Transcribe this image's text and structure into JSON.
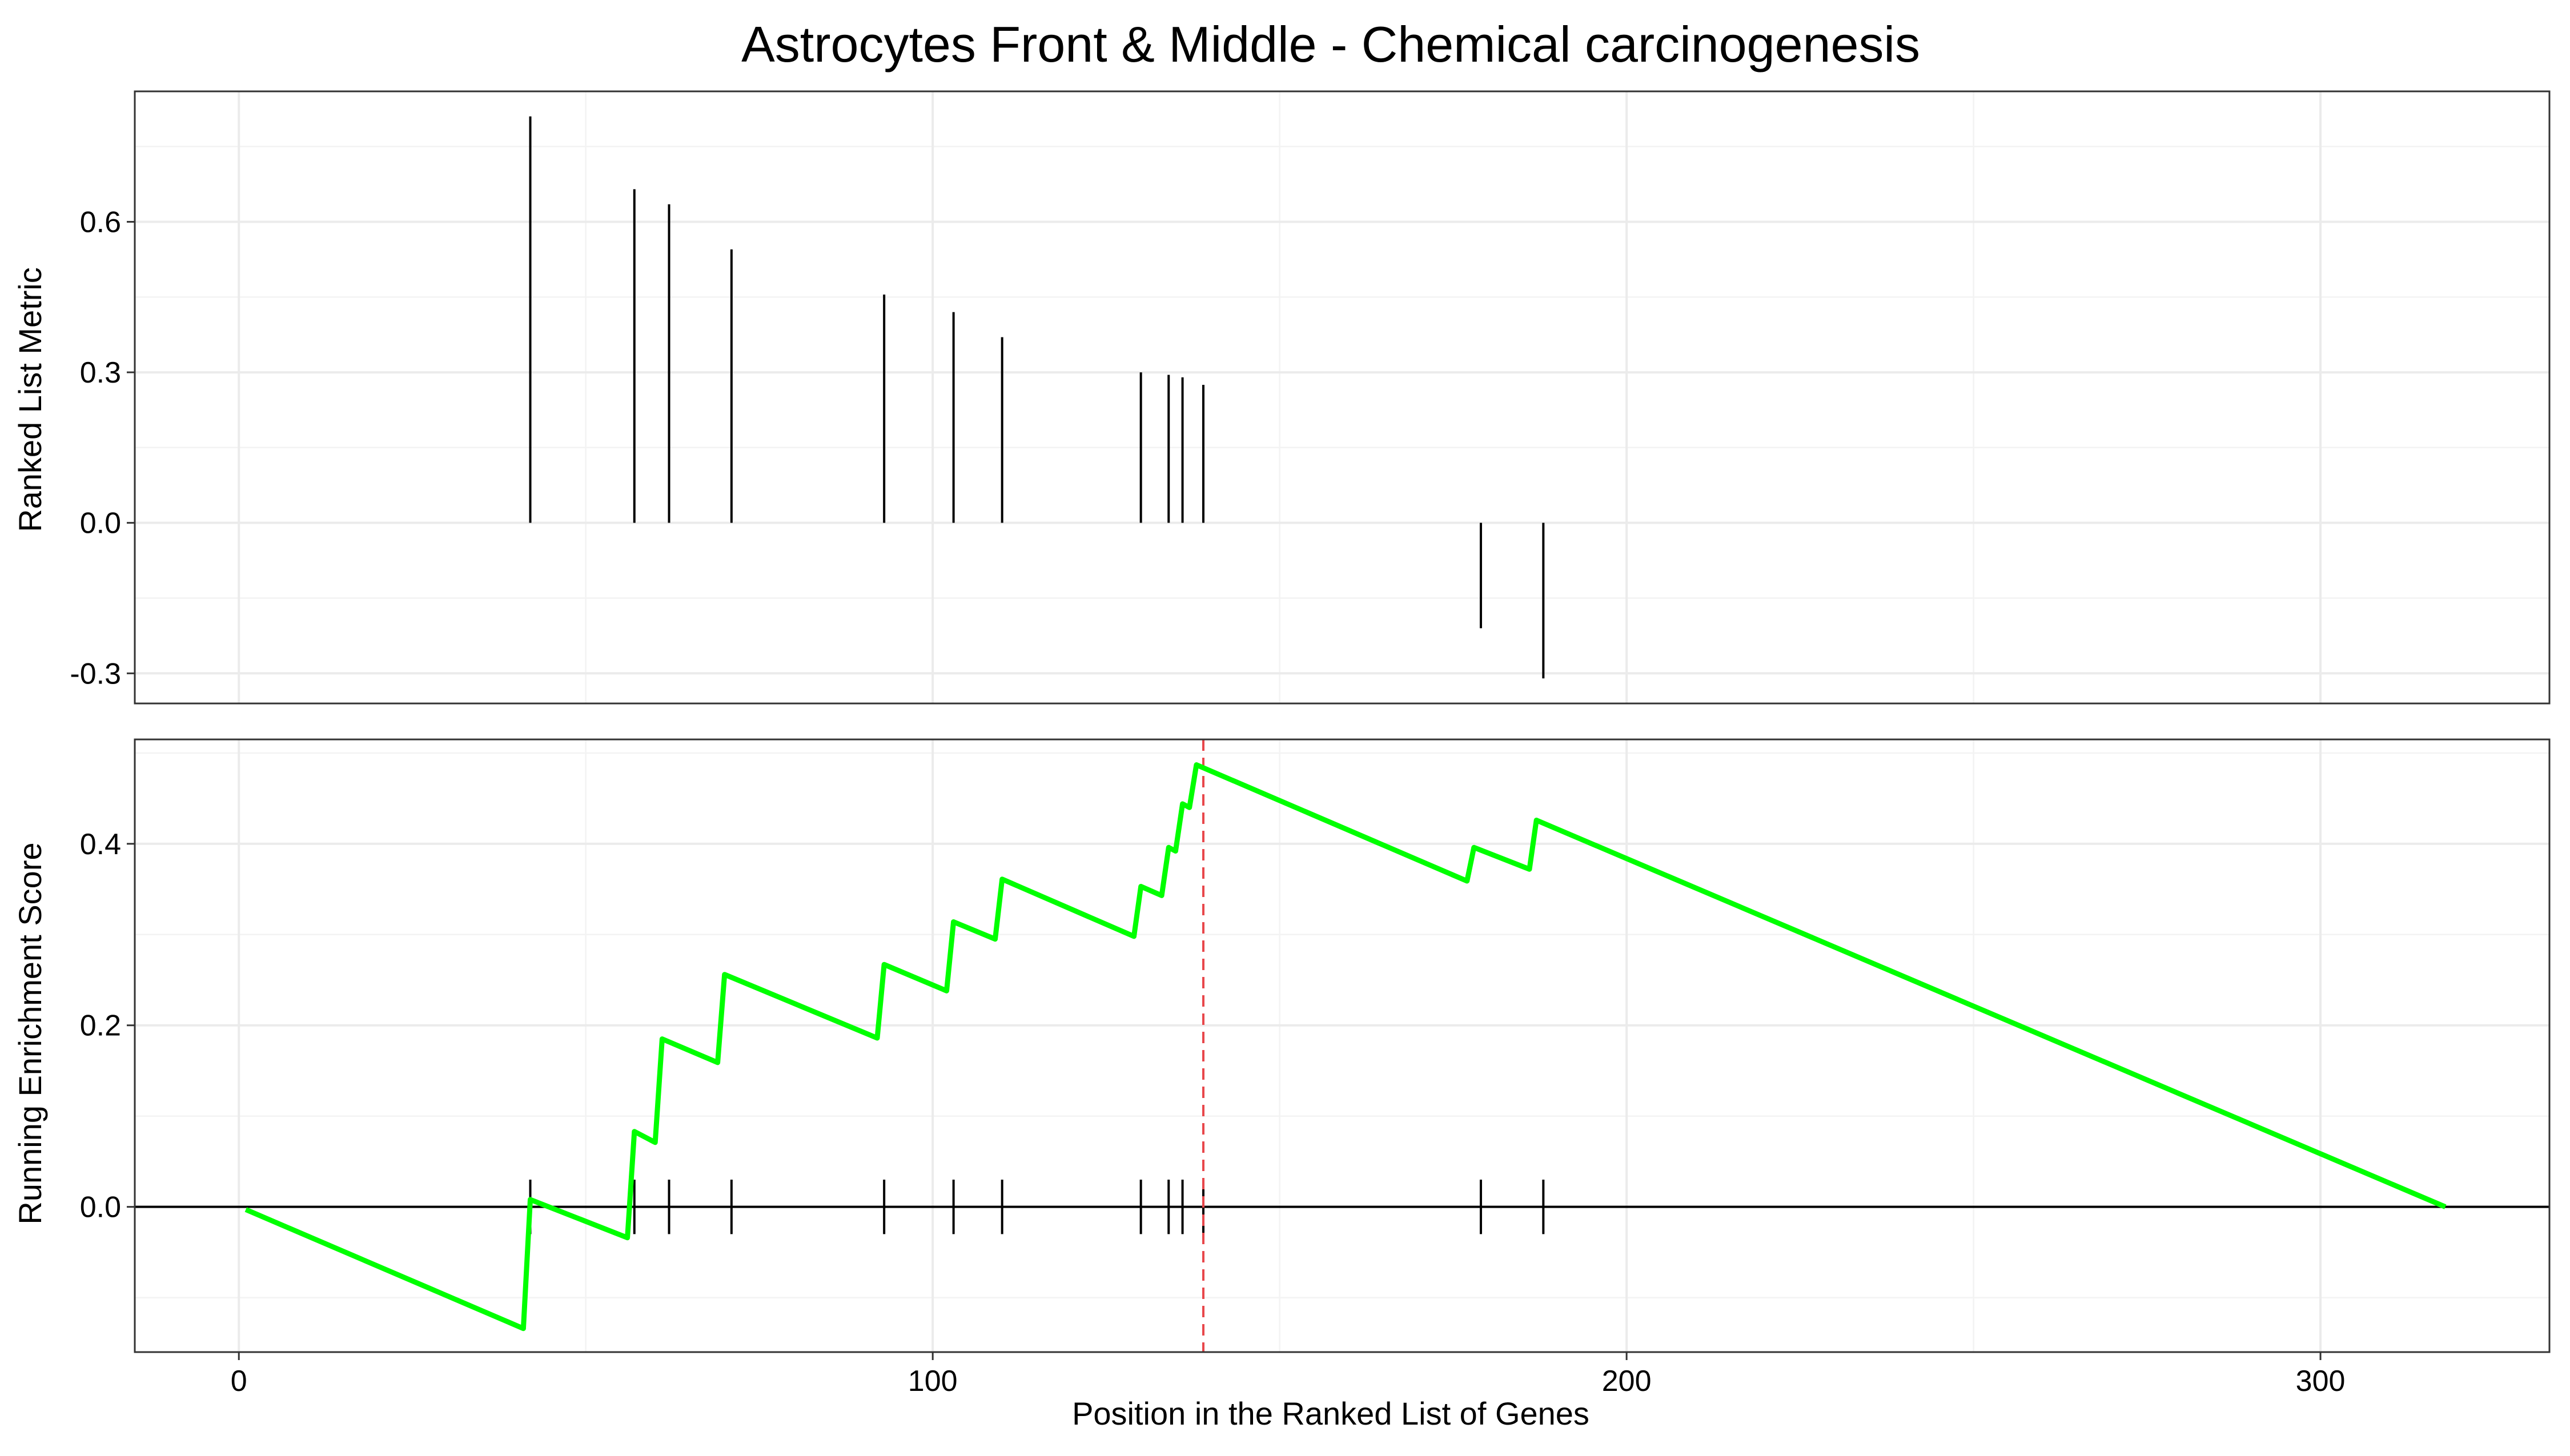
{
  "title": "Astrocytes Front & Middle - Chemical carcinogenesis",
  "xlabel": "Position in the Ranked List of Genes",
  "colors": {
    "es_line": "#00ff00",
    "peak_line": "#e8474b",
    "bars": "#000000"
  },
  "chart_data": [
    {
      "type": "bar",
      "panel": "top",
      "ylabel": "Ranked List Metric",
      "xlim": [
        -15,
        333
      ],
      "ylim": [
        -0.36,
        0.86
      ],
      "x_ticks": [
        0,
        100,
        200,
        300
      ],
      "y_ticks": [
        -0.3,
        0.0,
        0.3,
        0.6
      ],
      "y_tick_labels": [
        "-0.3",
        "0.0",
        "0.3",
        "0.6"
      ],
      "grid": true,
      "x": [
        42,
        57,
        62,
        71,
        93,
        103,
        110,
        130,
        134,
        136,
        139,
        179,
        188
      ],
      "values": [
        0.81,
        0.665,
        0.635,
        0.545,
        0.455,
        0.42,
        0.37,
        0.3,
        0.295,
        0.29,
        0.275,
        -0.21,
        -0.31
      ]
    },
    {
      "type": "line",
      "panel": "bottom",
      "ylabel": "Running Enrichment Score",
      "xlim": [
        -15,
        333
      ],
      "ylim": [
        -0.16,
        0.515
      ],
      "x_ticks": [
        0,
        100,
        200,
        300
      ],
      "x_tick_labels": [
        "0",
        "100",
        "200",
        "300"
      ],
      "y_ticks": [
        0.0,
        0.2,
        0.4
      ],
      "y_tick_labels": [
        "0.0",
        "0.2",
        "0.4"
      ],
      "grid": true,
      "series": [
        {
          "x": [
            1,
            41,
            42,
            56,
            57,
            60,
            61,
            69,
            70,
            92,
            93,
            102,
            103,
            109,
            110,
            129,
            130,
            133,
            134,
            135,
            136,
            137,
            138,
            177,
            178,
            186,
            187,
            318
          ],
          "y": [
            -0.003,
            -0.134,
            0.008,
            -0.034,
            0.083,
            0.071,
            0.185,
            0.159,
            0.256,
            0.186,
            0.267,
            0.238,
            0.314,
            0.295,
            0.361,
            0.298,
            0.353,
            0.343,
            0.396,
            0.392,
            0.444,
            0.44,
            0.487,
            0.359,
            0.396,
            0.372,
            0.426,
            0.0
          ]
        }
      ],
      "hits": [
        42,
        57,
        62,
        71,
        93,
        103,
        110,
        130,
        134,
        136,
        139,
        179,
        188
      ],
      "hit_tick_range": [
        -0.03,
        0.03
      ],
      "peak_x": 139
    }
  ]
}
